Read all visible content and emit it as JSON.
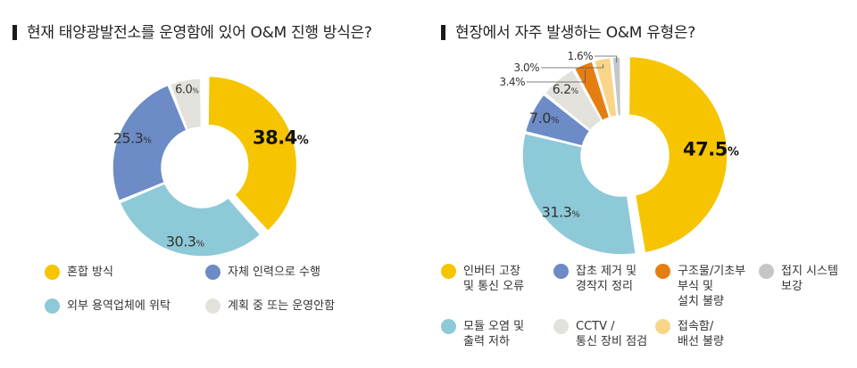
{
  "charts": [
    {
      "title": "현재 태양광발전소를 운영함에 있어 O&M 진행 방식은?",
      "chart_data": {
        "type": "pie",
        "title": "현재 태양광발전소를 운영함에 있어 O&M 진행 방식은?",
        "unit": "%",
        "slices": [
          {
            "label": "혼합 방식",
            "value": 38.4,
            "color": "#f6c400",
            "exploded": true,
            "label_color": "#111111",
            "label_bold": true
          },
          {
            "label": "외부 용역업체에 위탁",
            "value": 30.3,
            "color": "#8ec9d8",
            "exploded": false,
            "label_color": "#333333",
            "label_bold": false
          },
          {
            "label": "자체 인력으로 수행",
            "value": 25.3,
            "color": "#6c8bc7",
            "exploded": false,
            "label_color": "#333333",
            "label_bold": false
          },
          {
            "label": "계획 중 또는 운영안함",
            "value": 6.0,
            "color": "#e3e1dc",
            "exploded": false,
            "label_color": "#333333",
            "label_bold": false
          }
        ],
        "legend": [
          {
            "label": "혼합 방식",
            "color": "#f6c400"
          },
          {
            "label": "자체 인력으로 수행",
            "color": "#6c8bc7"
          },
          {
            "label": "외부 용역업체에 위탁",
            "color": "#8ec9d8"
          },
          {
            "label": "계획 중 또는 운영안함",
            "color": "#e3e1dc"
          }
        ]
      }
    },
    {
      "title": "현장에서 자주 발생하는 O&M 유형은?",
      "chart_data": {
        "type": "pie",
        "title": "현장에서 자주 발생하는 O&M 유형은?",
        "unit": "%",
        "slices": [
          {
            "label": "인버터 고장\n및 통신 오류",
            "value": 47.5,
            "color": "#f6c400",
            "exploded": true,
            "label_color": "#111111",
            "label_bold": true,
            "callout": false
          },
          {
            "label": "모듈 오염 및\n출력 저하",
            "value": 31.3,
            "color": "#8ec9d8",
            "exploded": false,
            "label_color": "#333333",
            "label_bold": false,
            "callout": false
          },
          {
            "label": "잡초 제거 및\n경작지 정리",
            "value": 7.0,
            "color": "#6c8bc7",
            "exploded": false,
            "label_color": "#333333",
            "label_bold": false,
            "callout": false
          },
          {
            "label": "CCTV /\n통신 장비 점검",
            "value": 6.2,
            "color": "#e3e1dc",
            "exploded": false,
            "label_color": "#333333",
            "label_bold": false,
            "callout": false
          },
          {
            "label": "구조물/기초부\n부식 및\n설치 불량",
            "value": 3.4,
            "color": "#e57e12",
            "exploded": false,
            "label_color": "#333333",
            "label_bold": false,
            "callout": true
          },
          {
            "label": "접속함/\n배선 불량",
            "value": 3.0,
            "color": "#f9d58a",
            "exploded": false,
            "label_color": "#333333",
            "label_bold": false,
            "callout": true
          },
          {
            "label": "접지 시스템\n보강",
            "value": 1.6,
            "color": "#c4c6c8",
            "exploded": false,
            "label_color": "#333333",
            "label_bold": false,
            "callout": true
          }
        ],
        "legend": [
          {
            "label": "인버터 고장\n및 통신 오류",
            "color": "#f6c400"
          },
          {
            "label": "잡초 제거 및\n경작지 정리",
            "color": "#6c8bc7"
          },
          {
            "label": "구조물/기초부\n부식 및\n설치 불량",
            "color": "#e57e12"
          },
          {
            "label": "접지 시스템\n보강",
            "color": "#c4c6c8"
          },
          {
            "label": "모듈 오염 및\n출력 저하",
            "color": "#8ec9d8"
          },
          {
            "label": "CCTV /\n통신 장비 점검",
            "color": "#e3e1dc"
          },
          {
            "label": "접속함/\n배선 불량",
            "color": "#f9d58a"
          }
        ]
      }
    }
  ]
}
